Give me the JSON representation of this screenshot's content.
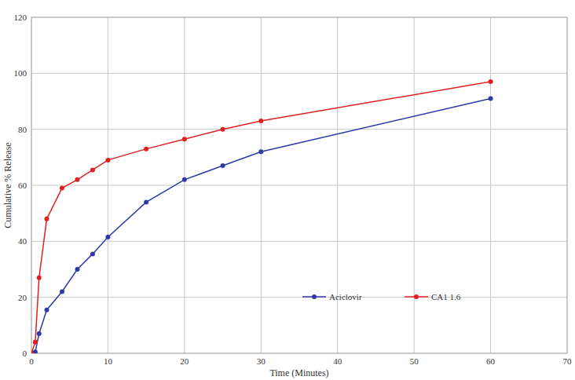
{
  "chart_data": {
    "type": "line",
    "x_label": "Time (Minutes)",
    "y_label": "Cumulative % Release",
    "x": [
      0,
      0.5,
      1,
      2,
      4,
      6,
      8,
      10,
      15,
      20,
      25,
      30,
      60
    ],
    "series": [
      {
        "name": "Aciclovir",
        "color": "#2e3aa8",
        "marker": "circle",
        "values": [
          0,
          0.5,
          7,
          15.5,
          22,
          30,
          35.5,
          41.5,
          54,
          62,
          67,
          72,
          91
        ]
      },
      {
        "name": "CA1 1.6",
        "color": "#e02020",
        "marker": "circle",
        "values": [
          0,
          4,
          27,
          48,
          59,
          62,
          65.5,
          69,
          73,
          76.5,
          80,
          83,
          97
        ]
      }
    ],
    "xlim": [
      0,
      70
    ],
    "xticks": [
      0,
      10,
      20,
      30,
      40,
      50,
      60,
      70
    ],
    "ylim": [
      0,
      120
    ],
    "yticks": [
      0,
      20,
      40,
      60,
      80,
      100,
      120
    ],
    "grid": true,
    "legend": "lower right"
  }
}
